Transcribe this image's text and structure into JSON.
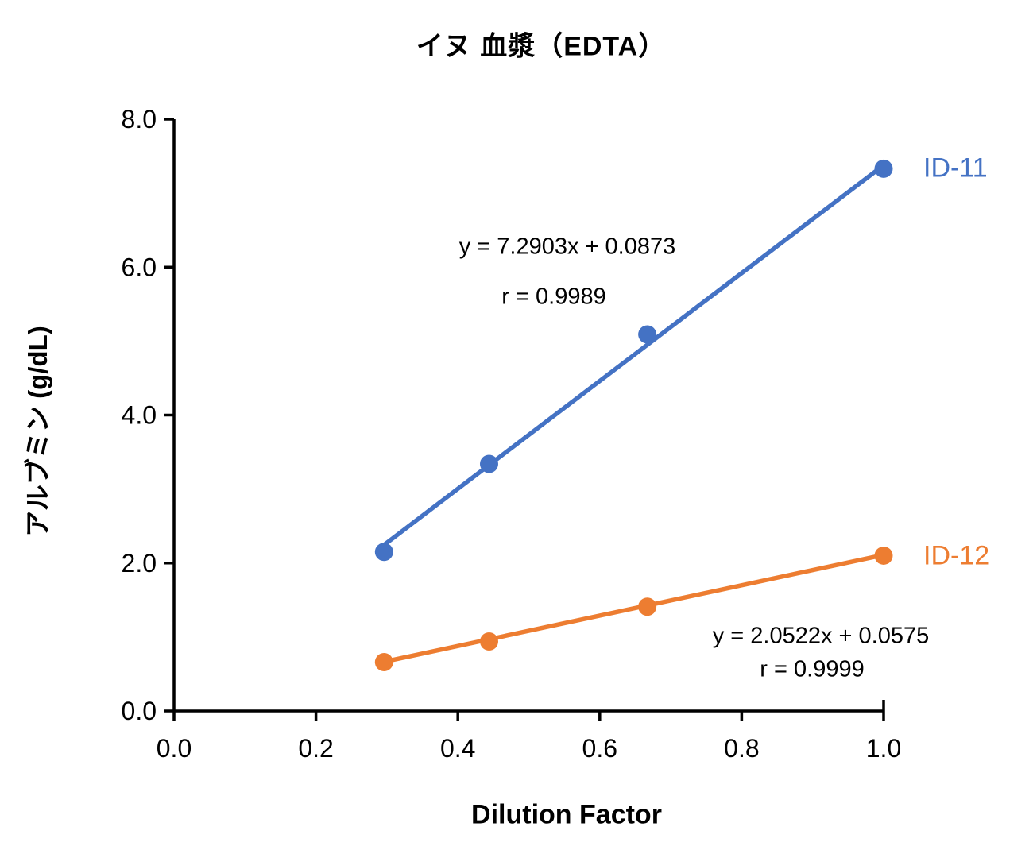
{
  "chart_data": {
    "type": "scatter",
    "title": "イヌ 血漿（EDTA）",
    "xlabel": "Dilution Factor",
    "ylabel": "アルブミン (g/dL)",
    "xlim": [
      0.0,
      1.0
    ],
    "ylim": [
      0.0,
      8.0
    ],
    "x_tick_labels": [
      "0.0",
      "0.2",
      "0.4",
      "0.6",
      "0.8",
      "1.0"
    ],
    "x_tick_values": [
      0.0,
      0.2,
      0.4,
      0.6,
      0.8,
      1.0
    ],
    "y_tick_labels": [
      "0.0",
      "2.0",
      "4.0",
      "6.0",
      "8.0"
    ],
    "y_tick_values": [
      0.0,
      2.0,
      4.0,
      6.0,
      8.0
    ],
    "grid": false,
    "legend_position": "right-of-last-point",
    "axis_color": "#000000",
    "series": [
      {
        "name": "ID-11",
        "color": "#4472C4",
        "x": [
          0.296,
          0.444,
          0.667,
          1.0
        ],
        "y": [
          2.15,
          3.34,
          5.09,
          7.33
        ],
        "trendline": {
          "slope": 7.2903,
          "intercept": 0.0873,
          "equation": "y = 7.2903x + 0.0873",
          "r_label": "r = 0.9989",
          "r": 0.9989
        }
      },
      {
        "name": "ID-12",
        "color": "#ED7D31",
        "x": [
          0.296,
          0.444,
          0.667,
          1.0
        ],
        "y": [
          0.66,
          0.94,
          1.41,
          2.1
        ],
        "trendline": {
          "slope": 2.0522,
          "intercept": 0.0575,
          "equation": "y = 2.0522x + 0.0575",
          "r_label": "r = 0.9999",
          "r": 0.9999
        }
      }
    ]
  }
}
